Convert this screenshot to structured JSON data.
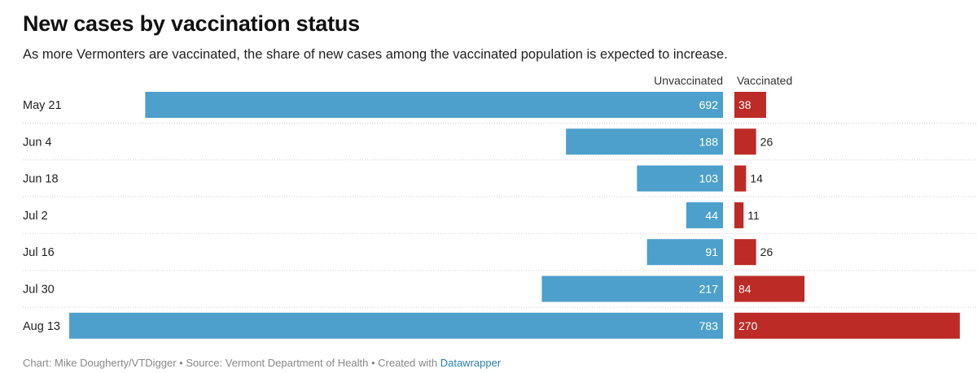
{
  "title": "New cases by vaccination status",
  "subtitle": "As more Vermonters are vaccinated, the share of new cases among the vaccinated population is expected to increase.",
  "footer": {
    "text": "Chart: Mike Dougherty/VTDigger • Source: Vermont Department of Health • Created with ",
    "link": "Datawrapper"
  },
  "colors": {
    "unvaccinated": "#4ca0cb",
    "vaccinated": "#bc2b26"
  },
  "chart_data": {
    "type": "bar",
    "orientation": "horizontal",
    "layout": "diverging split bars",
    "categories": [
      "May 21",
      "Jun 4",
      "Jun 18",
      "Jul 2",
      "Jul 16",
      "Jul 30",
      "Aug 13"
    ],
    "series": [
      {
        "name": "Unvaccinated",
        "values": [
          692,
          188,
          103,
          44,
          91,
          217,
          783
        ]
      },
      {
        "name": "Vaccinated",
        "values": [
          38,
          26,
          14,
          11,
          26,
          84,
          270
        ]
      }
    ],
    "xlabel": "",
    "ylabel": "",
    "legend": "column headers",
    "grid": false
  }
}
